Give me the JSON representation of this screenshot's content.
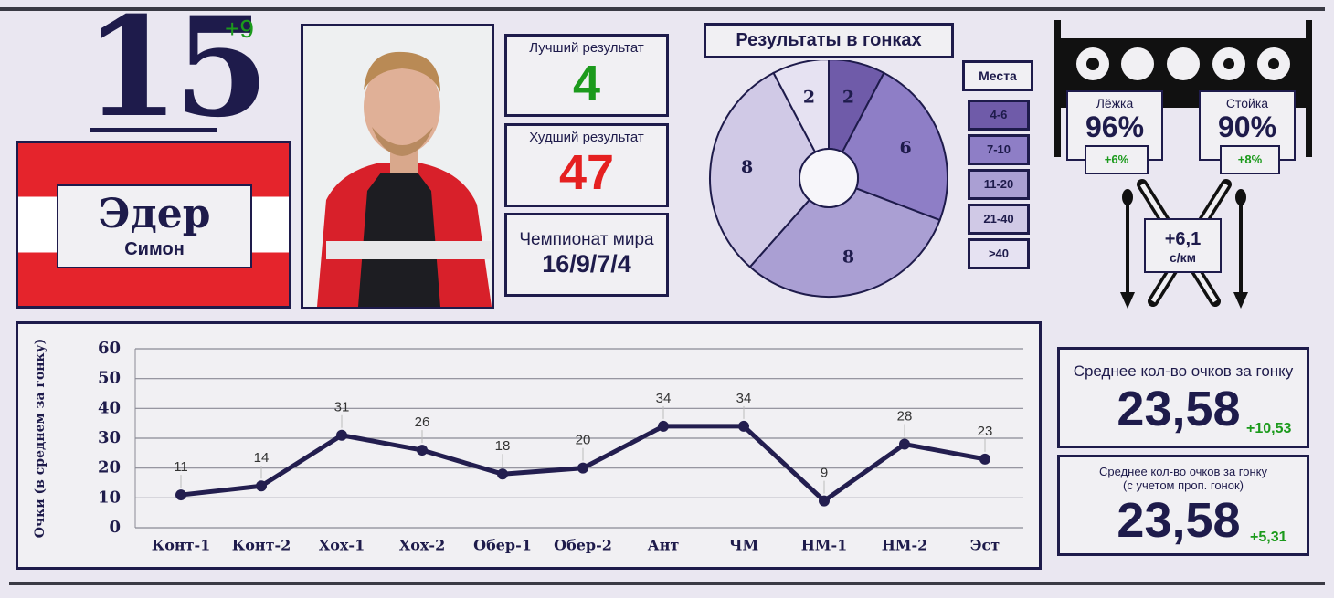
{
  "rank": {
    "value": 15,
    "change": "+9"
  },
  "athlete": {
    "surname": "Эдер",
    "name": "Симон"
  },
  "stats": [
    {
      "label": "Лучший результат",
      "value": 4
    },
    {
      "label": "Худший результат",
      "value": 47
    },
    {
      "label": "Чемпионат мира",
      "value": "16/9/7/4"
    }
  ],
  "shooting": {
    "prone": {
      "label": "Лёжка",
      "value": "96%",
      "change": "+6%"
    },
    "standing": {
      "label": "Стойка",
      "value": "90%",
      "change": "+8%"
    }
  },
  "ski_speed": {
    "value": "+6,1",
    "unit": "с/км"
  },
  "averages": [
    {
      "label": "Среднее кол-во очков за гонку",
      "value": "23,58",
      "change": "+10,53"
    },
    {
      "label": "Среднее кол-во очков за гонку",
      "note": "(с учетом проп. гонок)",
      "value": "23,58",
      "change": "+5,31"
    }
  ],
  "chart_data": [
    {
      "type": "pie",
      "title": "Результаты в гонках",
      "legend_title": "Места",
      "categories": [
        "4-6",
        "7-10",
        "11-20",
        "21-40",
        ">40"
      ],
      "values": [
        2,
        6,
        8,
        8,
        2
      ],
      "colors": [
        "#6f5ba9",
        "#8e7ec6",
        "#aa9fd3",
        "#d0c9e6",
        "#e6e2f2"
      ]
    },
    {
      "type": "line",
      "ylabel": "Очки (в среднем за гонку)",
      "categories": [
        "Конт-1",
        "Конт-2",
        "Хох-1",
        "Хох-2",
        "Обер-1",
        "Обер-2",
        "Ант",
        "ЧМ",
        "НМ-1",
        "НМ-2",
        "Эст"
      ],
      "values": [
        11,
        14,
        31,
        26,
        18,
        20,
        34,
        34,
        9,
        28,
        23
      ],
      "color": "#231e4f",
      "ylim": [
        0,
        60
      ],
      "yticks": [
        0,
        10,
        20,
        30,
        40,
        50,
        60
      ],
      "grid": true
    }
  ]
}
